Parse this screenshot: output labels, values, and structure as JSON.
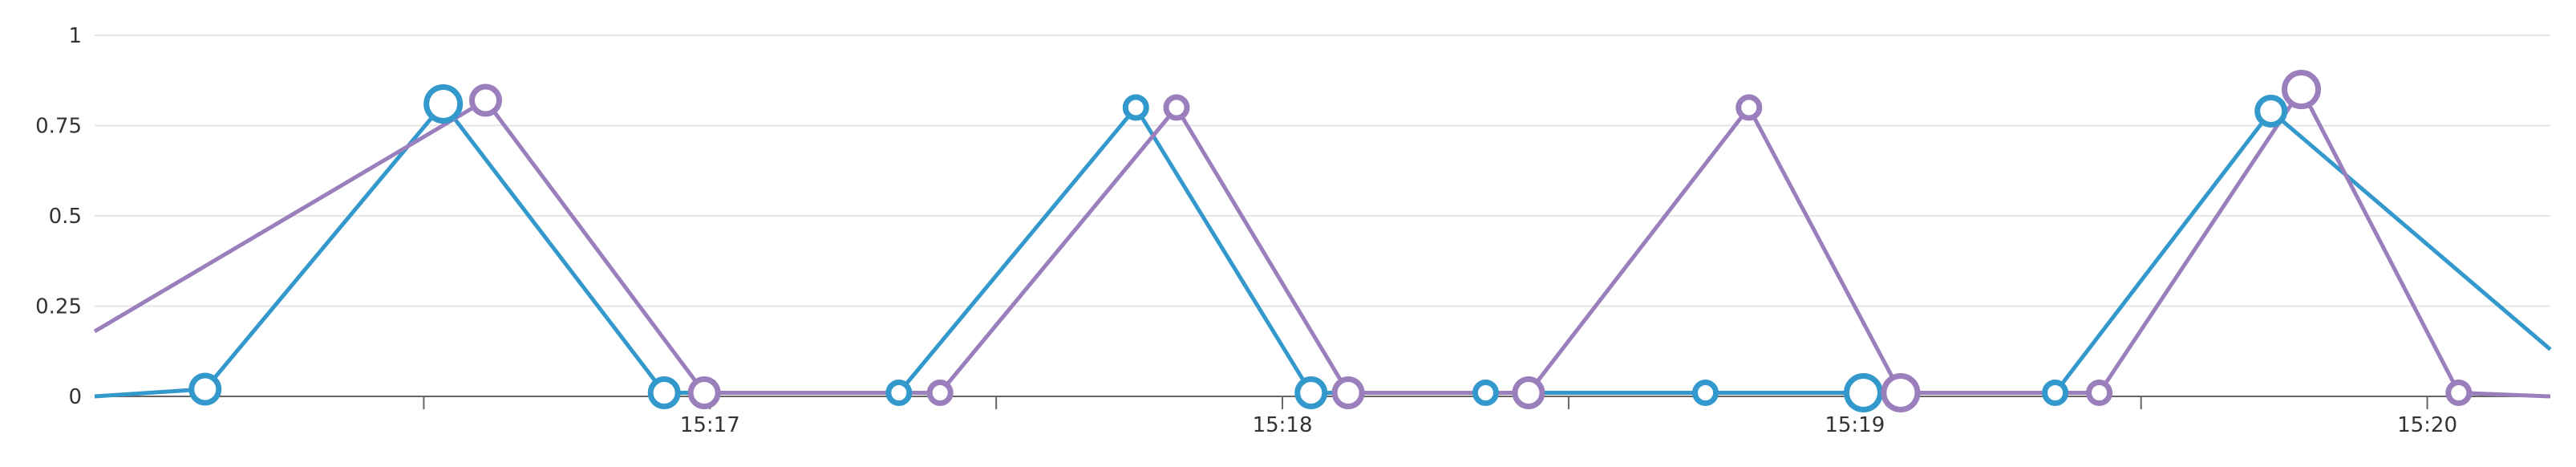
{
  "chart_data": {
    "type": "line",
    "y_ticks": [
      "0",
      "0.25",
      "0.5",
      "0.75",
      "1"
    ],
    "ylim": [
      0,
      1
    ],
    "x_tick_labels": [
      "15:17",
      "15:18",
      "15:19",
      "15:20"
    ],
    "x_tick_label_times": [
      17.0,
      18.0,
      19.0,
      20.0
    ],
    "xlim": [
      15.925,
      20.215
    ],
    "grid": true,
    "colors": {
      "series_1": "#3399cc",
      "series_2": "#9b7fbd"
    },
    "series": [
      {
        "color": "#3399cc",
        "points": [
          {
            "x": 15.925,
            "y": 0.0
          },
          {
            "x": 16.118,
            "y": 0.02,
            "r": "medium"
          },
          {
            "x": 16.534,
            "y": 0.81,
            "r": "large"
          },
          {
            "x": 16.92,
            "y": 0.01,
            "r": "medium"
          },
          {
            "x": 17.33,
            "y": 0.01,
            "r": "small"
          },
          {
            "x": 17.744,
            "y": 0.8,
            "r": "small"
          },
          {
            "x": 18.05,
            "y": 0.01,
            "r": "medium"
          },
          {
            "x": 18.355,
            "y": 0.01,
            "r": "small"
          },
          {
            "x": 18.739,
            "y": 0.01,
            "r": "small"
          },
          {
            "x": 19.015,
            "y": 0.01,
            "r": "large"
          },
          {
            "x": 19.35,
            "y": 0.01,
            "r": "small"
          },
          {
            "x": 19.727,
            "y": 0.79,
            "r": "medium"
          },
          {
            "x": 20.215,
            "y": 0.13
          }
        ]
      },
      {
        "color": "#9b7fbd",
        "points": [
          {
            "x": 15.925,
            "y": 0.18
          },
          {
            "x": 16.608,
            "y": 0.82,
            "r": "medium"
          },
          {
            "x": 16.99,
            "y": 0.01,
            "r": "medium"
          },
          {
            "x": 17.402,
            "y": 0.01,
            "r": "small"
          },
          {
            "x": 17.815,
            "y": 0.8,
            "r": "small"
          },
          {
            "x": 18.115,
            "y": 0.01,
            "r": "medium"
          },
          {
            "x": 18.43,
            "y": 0.01,
            "r": "medium"
          },
          {
            "x": 18.815,
            "y": 0.8,
            "r": "small"
          },
          {
            "x": 19.08,
            "y": 0.01,
            "r": "large"
          },
          {
            "x": 19.427,
            "y": 0.01,
            "r": "small"
          },
          {
            "x": 19.78,
            "y": 0.85,
            "r": "large"
          },
          {
            "x": 20.055,
            "y": 0.01,
            "r": "small"
          },
          {
            "x": 20.215,
            "y": 0.0
          }
        ]
      }
    ]
  }
}
